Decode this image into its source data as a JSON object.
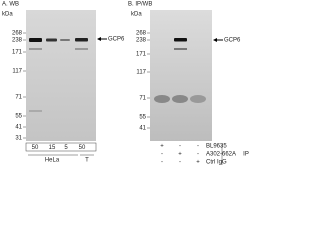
{
  "panel_a": {
    "title": "A. WB",
    "unit": "kDa",
    "markers": [
      268,
      238,
      171,
      117,
      71,
      55,
      41,
      31
    ],
    "target": "GCP6",
    "lanes": [
      "50",
      "15",
      "5",
      "50"
    ],
    "cell_lines": [
      "HeLa",
      "T"
    ]
  },
  "panel_b": {
    "title": "B. IP/WB",
    "unit": "kDa",
    "markers": [
      268,
      238,
      171,
      117,
      71,
      55,
      41
    ],
    "target": "GCP6",
    "rows": [
      {
        "label": "BL9635",
        "signs": [
          "+",
          "-",
          "-"
        ]
      },
      {
        "label": "A302-662A",
        "signs": [
          "-",
          "+",
          "-"
        ]
      },
      {
        "label": "Ctrl IgG",
        "signs": [
          "-",
          "-",
          "+"
        ]
      }
    ],
    "ip_label": "IP"
  }
}
